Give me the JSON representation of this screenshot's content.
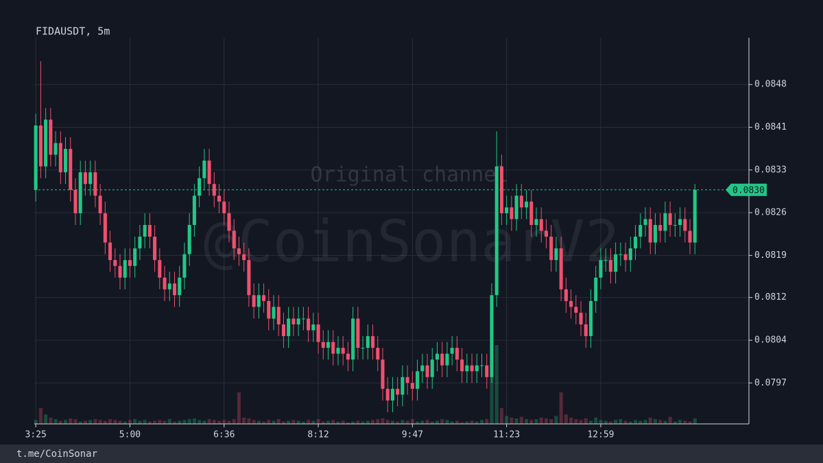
{
  "chart_data": {
    "type": "candlestick",
    "title": "FIDAUSDT, 5m",
    "watermark": "@CoinSonarV2",
    "watermark_note": "Original channel",
    "footer": "t.me/CoinSonar",
    "up_color": "#22c786",
    "down_color": "#f0506e",
    "open": [
      0.083,
      0.0841,
      0.0834,
      0.0842,
      0.0836,
      0.0838,
      0.0833,
      0.0837,
      0.083,
      0.0826,
      0.0833,
      0.0831,
      0.0833,
      0.0829,
      0.0826,
      0.0821,
      0.0818,
      0.0817,
      0.0815,
      0.0818,
      0.0817,
      0.082,
      0.0822,
      0.0824,
      0.0822,
      0.0818,
      0.0815,
      0.0813,
      0.0814,
      0.0812,
      0.0815,
      0.0819,
      0.0824,
      0.0829,
      0.0832,
      0.0835,
      0.0831,
      0.0829,
      0.0828,
      0.0826,
      0.0823,
      0.082,
      0.0819,
      0.0818,
      0.0812,
      0.081,
      0.0812,
      0.0811,
      0.0808,
      0.081,
      0.0807,
      0.0805,
      0.0808,
      0.0807,
      0.0808,
      0.0808,
      0.0806,
      0.0807,
      0.0804,
      0.0803,
      0.0804,
      0.0802,
      0.0803,
      0.0802,
      0.0801,
      0.0808,
      0.0803,
      0.0803,
      0.0805,
      0.0803,
      0.0801,
      0.0796,
      0.0794,
      0.0796,
      0.0795,
      0.0798,
      0.0797,
      0.0796,
      0.0799,
      0.08,
      0.0798,
      0.0801,
      0.0802,
      0.08,
      0.0802,
      0.0803,
      0.0801,
      0.0799,
      0.08,
      0.0799,
      0.08,
      0.08,
      0.0798,
      0.0812,
      0.0834,
      0.0826,
      0.0827,
      0.0825,
      0.0829,
      0.0827,
      0.0828,
      0.0824,
      0.0825,
      0.0823,
      0.0822,
      0.0818,
      0.082,
      0.0813,
      0.0811,
      0.081,
      0.0809,
      0.0807,
      0.0805,
      0.0811,
      0.0815,
      0.0818,
      0.0818,
      0.0816,
      0.0819,
      0.0819,
      0.0818,
      0.082,
      0.0822,
      0.0824,
      0.0825,
      0.0821,
      0.0824,
      0.0823,
      0.0826,
      0.0824,
      0.0824,
      0.0825,
      0.0823,
      0.0821
    ],
    "high": [
      0.0843,
      0.0852,
      0.0844,
      0.0844,
      0.084,
      0.084,
      0.0839,
      0.0839,
      0.0832,
      0.0835,
      0.0835,
      0.0835,
      0.0835,
      0.0831,
      0.0828,
      0.0823,
      0.082,
      0.0819,
      0.082,
      0.082,
      0.0822,
      0.0824,
      0.0826,
      0.0826,
      0.0824,
      0.082,
      0.0817,
      0.0816,
      0.0816,
      0.0817,
      0.0821,
      0.0826,
      0.0831,
      0.0834,
      0.0837,
      0.0837,
      0.0833,
      0.0831,
      0.083,
      0.0828,
      0.0825,
      0.0822,
      0.0821,
      0.082,
      0.0814,
      0.0814,
      0.0814,
      0.0813,
      0.0812,
      0.0812,
      0.0809,
      0.081,
      0.081,
      0.081,
      0.081,
      0.081,
      0.0809,
      0.0809,
      0.0806,
      0.0806,
      0.0806,
      0.0805,
      0.0805,
      0.0804,
      0.081,
      0.081,
      0.0805,
      0.0807,
      0.0807,
      0.0805,
      0.0803,
      0.0798,
      0.0798,
      0.0798,
      0.08,
      0.08,
      0.0799,
      0.0801,
      0.0802,
      0.0802,
      0.0803,
      0.0804,
      0.0804,
      0.0804,
      0.0805,
      0.0805,
      0.0803,
      0.0802,
      0.0802,
      0.0802,
      0.0802,
      0.0802,
      0.0814,
      0.084,
      0.0836,
      0.0829,
      0.0829,
      0.0831,
      0.0831,
      0.083,
      0.083,
      0.0827,
      0.0827,
      0.0825,
      0.0824,
      0.0822,
      0.0822,
      0.0815,
      0.0813,
      0.0812,
      0.0811,
      0.0809,
      0.0813,
      0.0817,
      0.082,
      0.082,
      0.082,
      0.0821,
      0.0821,
      0.0821,
      0.0822,
      0.0824,
      0.0826,
      0.0827,
      0.0827,
      0.0826,
      0.0826,
      0.0828,
      0.0828,
      0.0826,
      0.0827,
      0.0827,
      0.0825,
      0.0831
    ],
    "low": [
      0.0828,
      0.0832,
      0.0832,
      0.0834,
      0.0834,
      0.0831,
      0.0831,
      0.0828,
      0.0824,
      0.0824,
      0.0829,
      0.0829,
      0.0827,
      0.0824,
      0.0819,
      0.0816,
      0.0815,
      0.0813,
      0.0813,
      0.0815,
      0.0815,
      0.0818,
      0.082,
      0.082,
      0.0816,
      0.0813,
      0.0811,
      0.0811,
      0.081,
      0.081,
      0.0813,
      0.0817,
      0.0822,
      0.0827,
      0.083,
      0.0829,
      0.0827,
      0.0826,
      0.0824,
      0.0821,
      0.0818,
      0.0817,
      0.0816,
      0.081,
      0.0808,
      0.0808,
      0.0809,
      0.0806,
      0.0806,
      0.0805,
      0.0803,
      0.0803,
      0.0805,
      0.0805,
      0.0806,
      0.0804,
      0.0804,
      0.0802,
      0.0801,
      0.0801,
      0.08,
      0.08,
      0.08,
      0.0799,
      0.0799,
      0.0801,
      0.0801,
      0.0801,
      0.0801,
      0.0799,
      0.0794,
      0.0792,
      0.0792,
      0.0793,
      0.0793,
      0.0795,
      0.0794,
      0.0794,
      0.0797,
      0.0796,
      0.0796,
      0.0799,
      0.0798,
      0.0798,
      0.08,
      0.0799,
      0.0797,
      0.0797,
      0.0797,
      0.0797,
      0.0798,
      0.0796,
      0.0797,
      0.081,
      0.0824,
      0.0824,
      0.0823,
      0.0823,
      0.0825,
      0.0825,
      0.0822,
      0.0822,
      0.0821,
      0.082,
      0.0816,
      0.0816,
      0.0811,
      0.0809,
      0.0808,
      0.0807,
      0.0805,
      0.0803,
      0.0803,
      0.0809,
      0.0813,
      0.0816,
      0.0814,
      0.0814,
      0.0817,
      0.0816,
      0.0816,
      0.0818,
      0.082,
      0.0822,
      0.0819,
      0.0819,
      0.0821,
      0.0821,
      0.0822,
      0.0822,
      0.0822,
      0.0821,
      0.0819,
      0.0819
    ],
    "close": [
      0.0841,
      0.0834,
      0.0842,
      0.0836,
      0.0838,
      0.0833,
      0.0837,
      0.083,
      0.0826,
      0.0833,
      0.0831,
      0.0833,
      0.0829,
      0.0826,
      0.0821,
      0.0818,
      0.0817,
      0.0815,
      0.0818,
      0.0817,
      0.082,
      0.0822,
      0.0824,
      0.0822,
      0.0818,
      0.0815,
      0.0813,
      0.0814,
      0.0812,
      0.0815,
      0.0819,
      0.0824,
      0.0829,
      0.0832,
      0.0835,
      0.0831,
      0.0829,
      0.0828,
      0.0826,
      0.0823,
      0.082,
      0.0819,
      0.0818,
      0.0812,
      0.081,
      0.0812,
      0.0811,
      0.0808,
      0.081,
      0.0807,
      0.0805,
      0.0808,
      0.0807,
      0.0808,
      0.0808,
      0.0806,
      0.0807,
      0.0804,
      0.0803,
      0.0804,
      0.0802,
      0.0803,
      0.0802,
      0.0801,
      0.0808,
      0.0803,
      0.0803,
      0.0805,
      0.0803,
      0.0801,
      0.0796,
      0.0794,
      0.0796,
      0.0795,
      0.0798,
      0.0797,
      0.0796,
      0.0799,
      0.08,
      0.0798,
      0.0801,
      0.0802,
      0.08,
      0.0802,
      0.0803,
      0.0801,
      0.0799,
      0.08,
      0.0799,
      0.08,
      0.08,
      0.0798,
      0.0812,
      0.0834,
      0.0826,
      0.0827,
      0.0825,
      0.0829,
      0.0827,
      0.0828,
      0.0824,
      0.0825,
      0.0823,
      0.0822,
      0.0818,
      0.082,
      0.0813,
      0.0811,
      0.081,
      0.0809,
      0.0807,
      0.0805,
      0.0811,
      0.0815,
      0.0818,
      0.0818,
      0.0816,
      0.0819,
      0.0819,
      0.0818,
      0.082,
      0.0822,
      0.0824,
      0.0825,
      0.0821,
      0.0824,
      0.0823,
      0.0826,
      0.0824,
      0.0824,
      0.0825,
      0.0823,
      0.0821,
      0.083
    ],
    "volume": [
      5,
      20,
      12,
      8,
      6,
      4,
      5,
      7,
      6,
      3,
      4,
      5,
      6,
      5,
      4,
      6,
      5,
      4,
      3,
      5,
      6,
      4,
      5,
      3,
      4,
      5,
      4,
      6,
      3,
      4,
      5,
      6,
      7,
      5,
      4,
      6,
      5,
      4,
      5,
      4,
      6,
      40,
      8,
      7,
      5,
      4,
      3,
      5,
      4,
      6,
      3,
      4,
      5,
      4,
      3,
      5,
      4,
      6,
      3,
      4,
      5,
      3,
      4,
      2,
      3,
      4,
      3,
      4,
      5,
      6,
      7,
      5,
      4,
      3,
      5,
      4,
      6,
      3,
      4,
      5,
      3,
      4,
      6,
      5,
      3,
      4,
      2,
      3,
      4,
      3,
      5,
      6,
      60,
      100,
      20,
      10,
      8,
      7,
      9,
      6,
      5,
      6,
      8,
      7,
      6,
      10,
      40,
      12,
      8,
      6,
      5,
      7,
      4,
      8,
      5,
      4,
      3,
      5,
      6,
      4,
      3,
      5,
      4,
      5,
      8,
      6,
      5,
      4,
      9,
      3,
      5,
      4,
      3,
      7
    ],
    "xlim": [
      -0.3,
      143.9
    ],
    "xticks": [
      {
        "value": 0,
        "label": "3:25"
      },
      {
        "value": 19,
        "label": "5:00"
      },
      {
        "value": 38,
        "label": "6:36"
      },
      {
        "value": 57,
        "label": "8:12"
      },
      {
        "value": 76,
        "label": "9:47"
      },
      {
        "value": 95,
        "label": "11:23"
      },
      {
        "value": 114,
        "label": "12:59"
      }
    ],
    "ylim": [
      0.079,
      0.0856
    ],
    "yticks": [
      0.0797,
      {
        "value": 0.08043,
        "label": "0.0804"
      },
      {
        "value": 0.08116,
        "label": "0.0812"
      },
      {
        "value": 0.08188,
        "label": "0.0819"
      },
      {
        "value": 0.08261,
        "label": "0.0826"
      },
      {
        "value": 0.08334,
        "label": "0.0833"
      },
      {
        "value": 0.08407,
        "label": "0.0841"
      },
      {
        "value": 0.0848,
        "label": "0.0848"
      }
    ],
    "last_price": {
      "value": 0.083,
      "label": "0.0830"
    },
    "grid": true
  }
}
